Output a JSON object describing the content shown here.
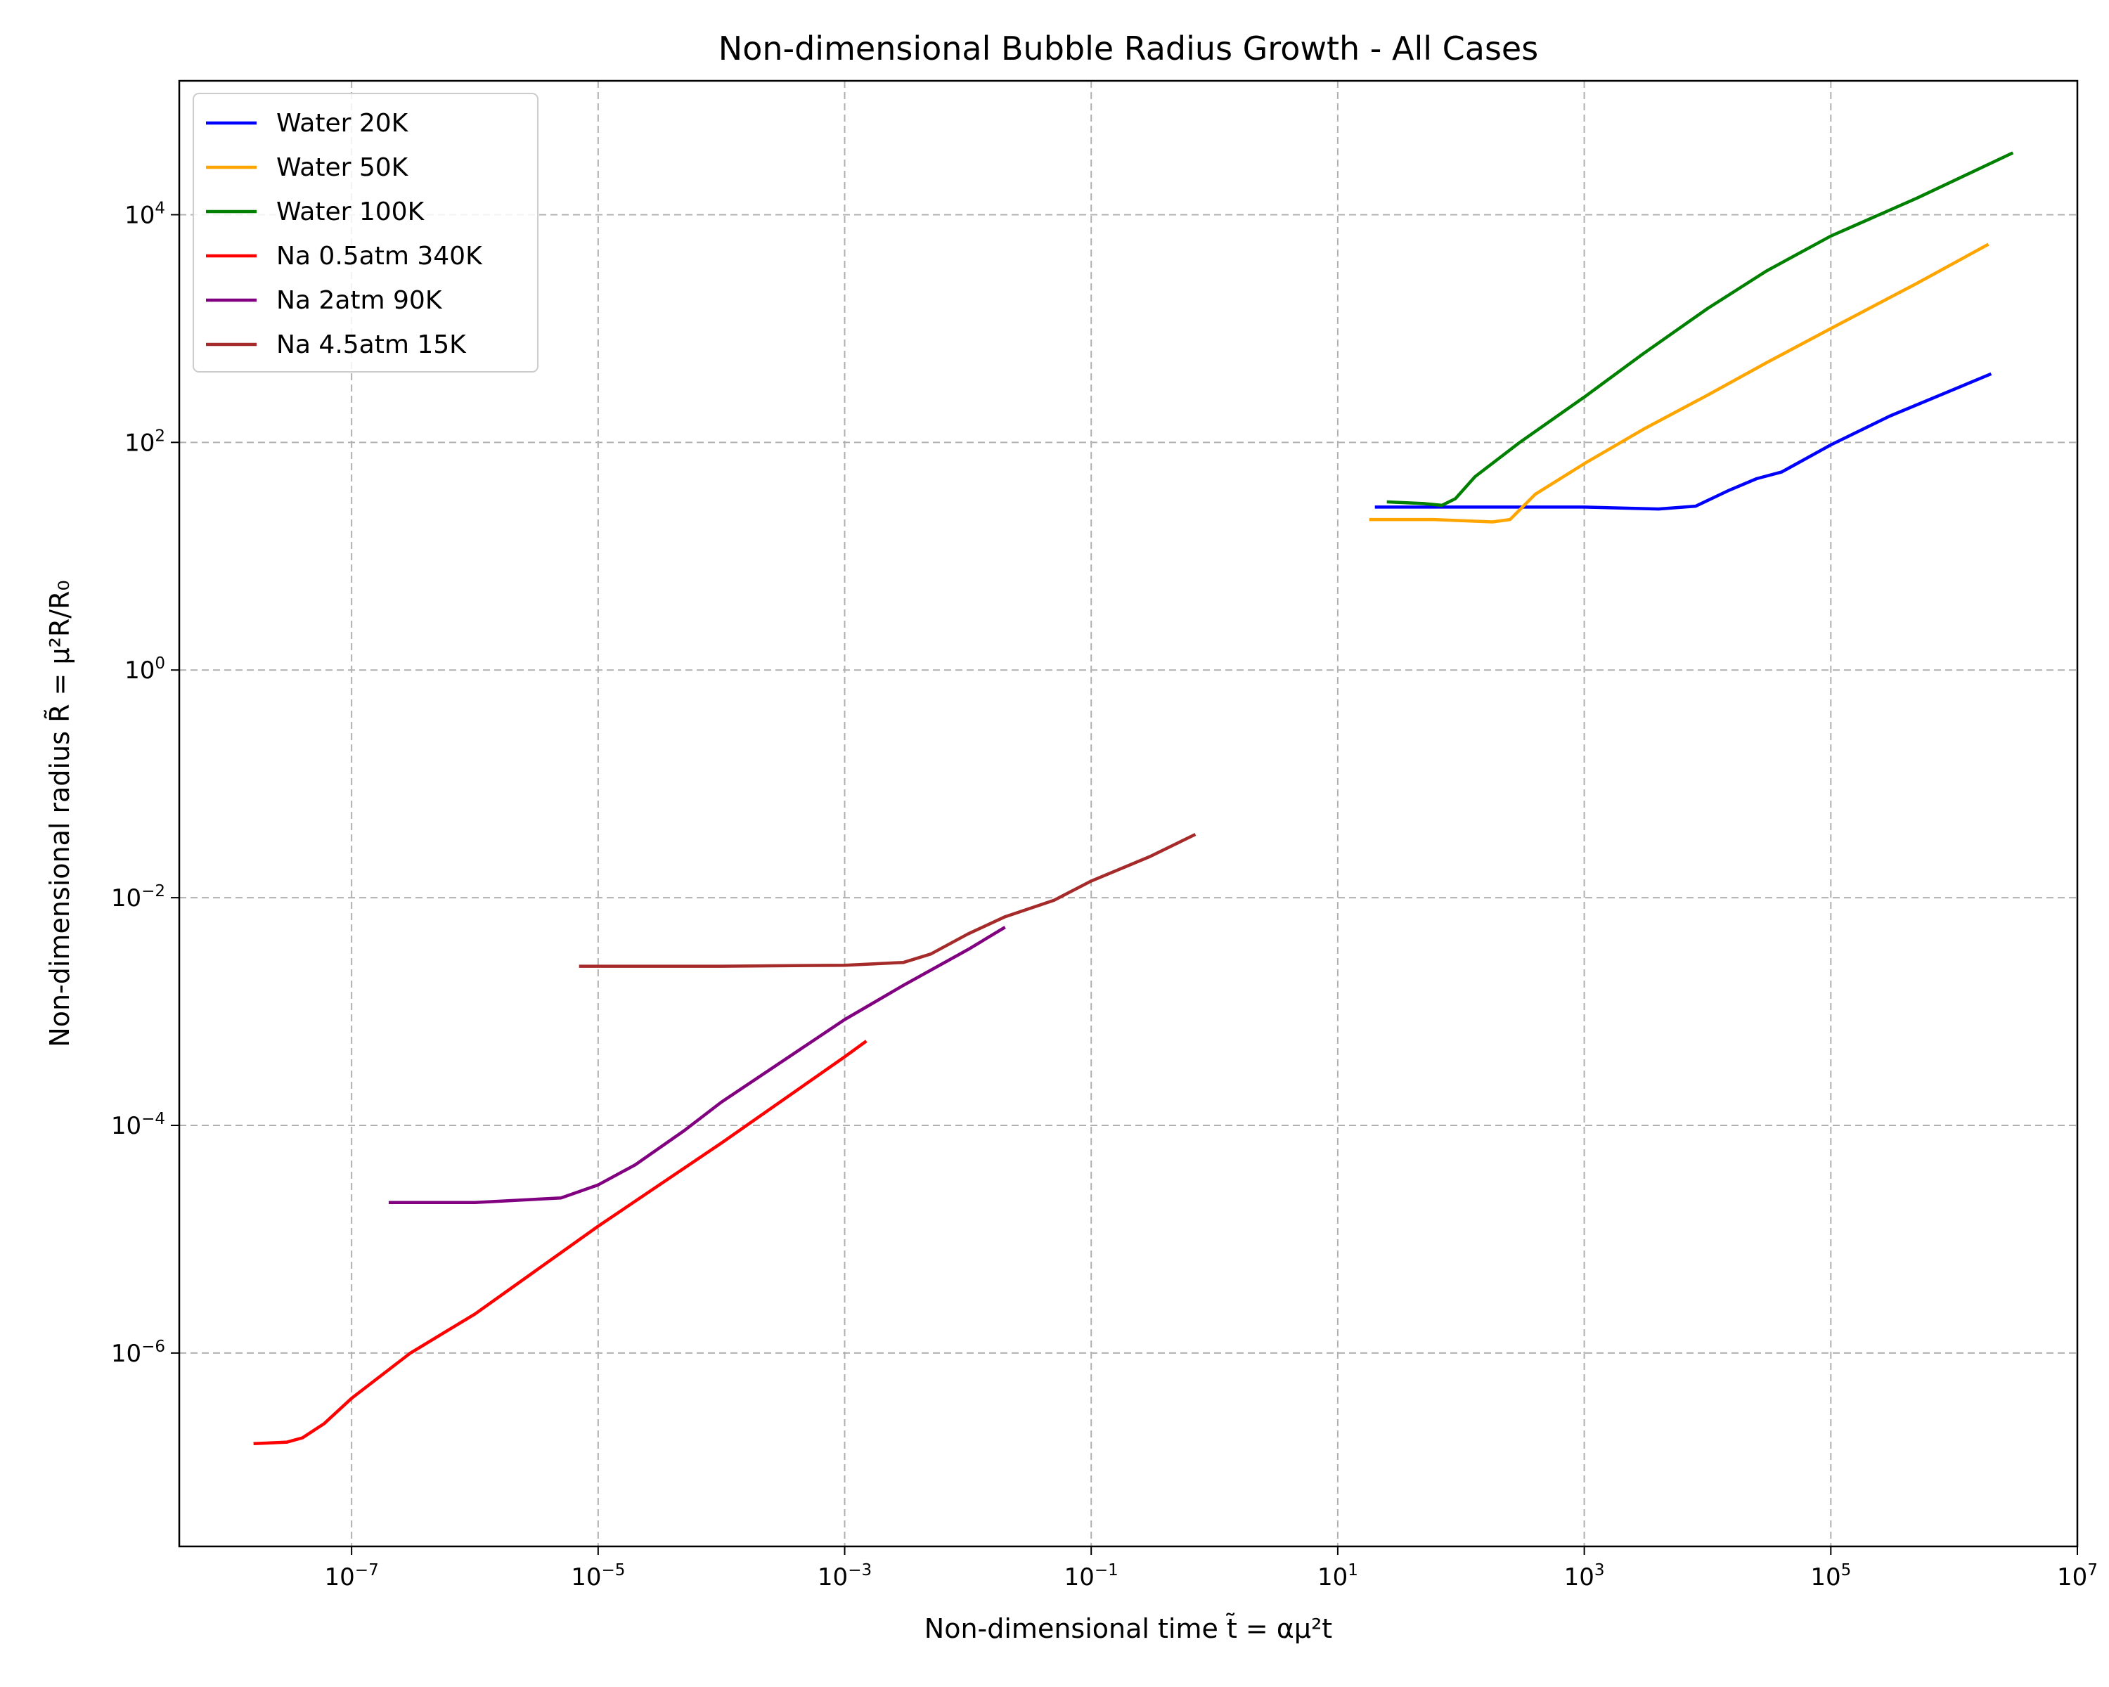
{
  "chart_data": {
    "type": "line",
    "title": "Non-dimensional Bubble Radius Growth - All Cases",
    "xlabel": "Non-dimensional time t̃ = αμ²t",
    "ylabel": "Non-dimensional radius R̃ = μ²R/R₀",
    "xscale": "log",
    "yscale": "log",
    "xlim": [
      4e-09,
      10000000.0
    ],
    "ylim": [
      2e-08,
      150000.0
    ],
    "x_ticks": [
      {
        "base": "10",
        "exp": "−7",
        "value": 1e-07
      },
      {
        "base": "10",
        "exp": "−5",
        "value": 1e-05
      },
      {
        "base": "10",
        "exp": "−3",
        "value": 0.001
      },
      {
        "base": "10",
        "exp": "−1",
        "value": 0.1
      },
      {
        "base": "10",
        "exp": "1",
        "value": 10.0
      },
      {
        "base": "10",
        "exp": "3",
        "value": 1000.0
      },
      {
        "base": "10",
        "exp": "5",
        "value": 100000.0
      },
      {
        "base": "10",
        "exp": "7",
        "value": 10000000.0
      }
    ],
    "y_ticks": [
      {
        "base": "10",
        "exp": "−6",
        "value": 1e-06
      },
      {
        "base": "10",
        "exp": "−4",
        "value": 0.0001
      },
      {
        "base": "10",
        "exp": "−2",
        "value": 0.01
      },
      {
        "base": "10",
        "exp": "0",
        "value": 1
      },
      {
        "base": "10",
        "exp": "2",
        "value": 100.0
      },
      {
        "base": "10",
        "exp": "4",
        "value": 10000.0
      }
    ],
    "grid": true,
    "legend_position": "upper-left",
    "series": [
      {
        "name": "Water 20K",
        "color": "#0000ff",
        "x": [
          20,
          100,
          1000,
          4000,
          8000,
          15000,
          25000,
          40000,
          60000,
          100000,
          300000,
          2000000
        ],
        "y": [
          27,
          27,
          27,
          26,
          27.5,
          38,
          48,
          55,
          70,
          95,
          170,
          400
        ]
      },
      {
        "name": "Water 50K",
        "color": "#ffa500",
        "x": [
          18,
          60,
          180,
          250,
          400,
          1000,
          3000,
          10000,
          30000,
          100000,
          500000,
          1900000
        ],
        "y": [
          21,
          21,
          20,
          21,
          35,
          65,
          130,
          260,
          500,
          1000,
          2500,
          5500
        ]
      },
      {
        "name": "Water 100K",
        "color": "#008000",
        "x": [
          25,
          50,
          70,
          90,
          130,
          300,
          1000,
          3000,
          10000,
          30000,
          100000,
          500000,
          3000000
        ],
        "y": [
          30,
          29,
          28,
          32,
          50,
          100,
          250,
          600,
          1500,
          3200,
          6500,
          14000,
          35000
        ]
      },
      {
        "name": "Na 0.5atm 340K",
        "color": "#ff0000",
        "x": [
          1.6e-08,
          3e-08,
          4e-08,
          6e-08,
          1e-07,
          3e-07,
          1e-06,
          1e-05,
          0.0001,
          0.001,
          0.0015
        ],
        "y": [
          1.6e-07,
          1.65e-07,
          1.8e-07,
          2.4e-07,
          4e-07,
          1e-06,
          2.2e-06,
          1.3e-05,
          7e-05,
          0.0004,
          0.00055
        ]
      },
      {
        "name": "Na 2atm 90K",
        "color": "#800080",
        "x": [
          2e-07,
          1e-06,
          5e-06,
          1e-05,
          2e-05,
          5e-05,
          0.0001,
          0.001,
          0.003,
          0.01,
          0.02
        ],
        "y": [
          2.1e-05,
          2.1e-05,
          2.3e-05,
          3e-05,
          4.5e-05,
          9e-05,
          0.00016,
          0.00085,
          0.0017,
          0.0035,
          0.0055
        ]
      },
      {
        "name": "Na 4.5atm 15K",
        "color": "#a52a2a",
        "x": [
          7e-06,
          0.0001,
          0.001,
          0.003,
          0.005,
          0.01,
          0.02,
          0.05,
          0.1,
          0.3,
          0.7
        ],
        "y": [
          0.0025,
          0.0025,
          0.00255,
          0.0027,
          0.0032,
          0.0048,
          0.0068,
          0.0095,
          0.014,
          0.023,
          0.036
        ]
      }
    ]
  }
}
